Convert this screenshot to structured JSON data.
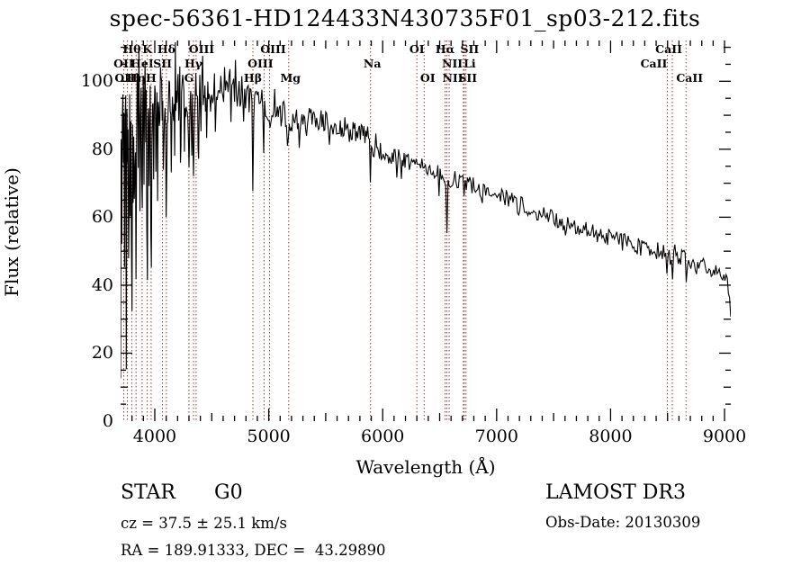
{
  "chart_data": {
    "type": "line",
    "title": "spec-56361-HD124433N430735F01_sp03-212.fits",
    "xlabel": "Wavelength (Å)",
    "ylabel": "Flux (relative)",
    "xlim": [
      3700,
      9055
    ],
    "ylim": [
      0,
      112
    ],
    "x_ticks": [
      4000,
      5000,
      6000,
      7000,
      8000,
      9000
    ],
    "y_ticks": [
      0,
      20,
      40,
      60,
      80,
      100
    ],
    "grid": false,
    "legend": "none",
    "trace_color": "#000000",
    "marker_line_color": "#a03333",
    "spectral_lines": [
      {
        "wl": 3727,
        "label": "OII",
        "row": 2,
        "dx": 0
      },
      {
        "wl": 3760,
        "label": "OIII",
        "row": 3,
        "dx": 0
      },
      {
        "wl": 3798,
        "label": "Hθ",
        "row": 1,
        "dx": 0
      },
      {
        "wl": 3836,
        "label": "Hη",
        "row": 3,
        "dx": 0
      },
      {
        "wl": 3889,
        "label": "HeI",
        "row": 2,
        "dx": 0
      },
      {
        "wl": 3934,
        "label": "K",
        "row": 1,
        "dx": 0
      },
      {
        "wl": 3968,
        "label": "H",
        "row": 3,
        "dx": 0
      },
      {
        "wl": 4068,
        "label": "SII",
        "row": 2,
        "dx": 0
      },
      {
        "wl": 4102,
        "label": "Hδ",
        "row": 1,
        "dx": 0
      },
      {
        "wl": 4300,
        "label": "G",
        "row": 3,
        "dx": 0
      },
      {
        "wl": 4340,
        "label": "Hγ",
        "row": 2,
        "dx": 0
      },
      {
        "wl": 4363,
        "label": "OIII",
        "row": 1,
        "dx": 6
      },
      {
        "wl": 4861,
        "label": "Hβ",
        "row": 3,
        "dx": 0
      },
      {
        "wl": 4959,
        "label": "OIII",
        "row": 2,
        "dx": -4
      },
      {
        "wl": 5007,
        "label": "OIII",
        "row": 1,
        "dx": 4
      },
      {
        "wl": 5175,
        "label": "Mg",
        "row": 3,
        "dx": 2
      },
      {
        "wl": 5893,
        "label": "Na",
        "row": 2,
        "dx": 2
      },
      {
        "wl": 6300,
        "label": "OI",
        "row": 1,
        "dx": 0
      },
      {
        "wl": 6364,
        "label": "OI",
        "row": 3,
        "dx": 4
      },
      {
        "wl": 6548,
        "label": "NII",
        "row": 2,
        "dx": 8
      },
      {
        "wl": 6563,
        "label": "Hα",
        "row": 1,
        "dx": -2
      },
      {
        "wl": 6583,
        "label": "NII",
        "row": 3,
        "dx": 4
      },
      {
        "wl": 6708,
        "label": "Li",
        "row": 2,
        "dx": 7
      },
      {
        "wl": 6716,
        "label": "SII",
        "row": 1,
        "dx": 6
      },
      {
        "wl": 6731,
        "label": "SII",
        "row": 3,
        "dx": 2
      },
      {
        "wl": 8498,
        "label": "CaII",
        "row": 2,
        "dx": -15
      },
      {
        "wl": 8542,
        "label": "CaII",
        "row": 1,
        "dx": -4
      },
      {
        "wl": 8662,
        "label": "CaII",
        "row": 3,
        "dx": 4
      }
    ],
    "continuum": [
      [
        3700,
        12
      ],
      [
        3704,
        85
      ],
      [
        3715,
        93
      ],
      [
        3740,
        95
      ],
      [
        3770,
        96
      ],
      [
        3800,
        95
      ],
      [
        3850,
        96
      ],
      [
        3900,
        97
      ],
      [
        3950,
        97
      ],
      [
        4000,
        93
      ],
      [
        4050,
        95
      ],
      [
        4120,
        94
      ],
      [
        4200,
        95
      ],
      [
        4300,
        95
      ],
      [
        4400,
        97
      ],
      [
        4500,
        96
      ],
      [
        4600,
        99
      ],
      [
        4680,
        99
      ],
      [
        4750,
        97
      ],
      [
        4820,
        95
      ],
      [
        4900,
        94
      ],
      [
        5000,
        92
      ],
      [
        5100,
        91
      ],
      [
        5200,
        89
      ],
      [
        5300,
        89
      ],
      [
        5400,
        88.5
      ],
      [
        5500,
        88
      ],
      [
        5600,
        87
      ],
      [
        5700,
        86
      ],
      [
        5800,
        85
      ],
      [
        5870,
        84
      ],
      [
        5910,
        81
      ],
      [
        6000,
        79
      ],
      [
        6100,
        78
      ],
      [
        6200,
        77
      ],
      [
        6300,
        75.5
      ],
      [
        6400,
        74
      ],
      [
        6500,
        72.5
      ],
      [
        6560,
        71.5
      ],
      [
        6650,
        71
      ],
      [
        6750,
        70
      ],
      [
        6900,
        68
      ],
      [
        7000,
        66.5
      ],
      [
        7100,
        65.5
      ],
      [
        7200,
        64
      ],
      [
        7300,
        62.5
      ],
      [
        7400,
        61
      ],
      [
        7500,
        59.5
      ],
      [
        7600,
        58
      ],
      [
        7700,
        57
      ],
      [
        7800,
        56
      ],
      [
        7900,
        55
      ],
      [
        8000,
        54
      ],
      [
        8100,
        53
      ],
      [
        8200,
        52
      ],
      [
        8300,
        51
      ],
      [
        8400,
        50
      ],
      [
        8500,
        49
      ],
      [
        8600,
        48
      ],
      [
        8700,
        47
      ],
      [
        8800,
        46
      ],
      [
        8900,
        45
      ],
      [
        9000,
        44
      ],
      [
        9025,
        43
      ],
      [
        9045,
        37
      ],
      [
        9055,
        32
      ]
    ],
    "noise_profile": [
      [
        3700,
        13
      ],
      [
        3800,
        12
      ],
      [
        3900,
        11
      ],
      [
        4000,
        10
      ],
      [
        4100,
        8
      ],
      [
        4250,
        7
      ],
      [
        4400,
        6
      ],
      [
        4600,
        5.5
      ],
      [
        4800,
        5
      ],
      [
        5000,
        4.2
      ],
      [
        5300,
        3.6
      ],
      [
        5600,
        3.2
      ],
      [
        6000,
        2.9
      ],
      [
        6500,
        2.6
      ],
      [
        7000,
        2.5
      ],
      [
        7500,
        2.5
      ],
      [
        8000,
        2.6
      ],
      [
        8600,
        2.8
      ],
      [
        9055,
        2.8
      ]
    ],
    "noise_seed": 20130309,
    "absorption_features": [
      [
        3712,
        40,
        3
      ],
      [
        3727,
        28,
        3
      ],
      [
        3736,
        62,
        3
      ],
      [
        3750,
        80,
        3
      ],
      [
        3762,
        45,
        3
      ],
      [
        3772,
        82,
        3
      ],
      [
        3786,
        38,
        3
      ],
      [
        3798,
        66,
        4
      ],
      [
        3812,
        30,
        3
      ],
      [
        3822,
        48,
        3
      ],
      [
        3836,
        60,
        4
      ],
      [
        3856,
        28,
        3
      ],
      [
        3871,
        42,
        3
      ],
      [
        3889,
        46,
        4
      ],
      [
        3906,
        30,
        3
      ],
      [
        3920,
        24,
        3
      ],
      [
        3934,
        62,
        5
      ],
      [
        3950,
        32,
        3
      ],
      [
        3968,
        70,
        5
      ],
      [
        3988,
        28,
        3
      ],
      [
        4009,
        22,
        3
      ],
      [
        4026,
        26,
        4
      ],
      [
        4045,
        22,
        3
      ],
      [
        4077,
        20,
        3
      ],
      [
        4102,
        36,
        5
      ],
      [
        4144,
        24,
        4
      ],
      [
        4175,
        16,
        3
      ],
      [
        4227,
        20,
        4
      ],
      [
        4260,
        16,
        3
      ],
      [
        4300,
        26,
        5
      ],
      [
        4325,
        20,
        3
      ],
      [
        4340,
        30,
        5
      ],
      [
        4383,
        24,
        4
      ],
      [
        4405,
        16,
        3
      ],
      [
        4455,
        14,
        3
      ],
      [
        4531,
        13,
        3
      ],
      [
        4668,
        11,
        3
      ],
      [
        4780,
        9,
        3
      ],
      [
        4861,
        28,
        5
      ],
      [
        4920,
        10,
        3
      ],
      [
        4957,
        12,
        3
      ],
      [
        5015,
        10,
        3
      ],
      [
        5110,
        9,
        3
      ],
      [
        5167,
        15,
        4
      ],
      [
        5185,
        13,
        4
      ],
      [
        5270,
        11,
        4
      ],
      [
        5330,
        7,
        3
      ],
      [
        5400,
        6,
        3
      ],
      [
        5530,
        7,
        3
      ],
      [
        5710,
        6,
        3
      ],
      [
        5782,
        5,
        3
      ],
      [
        5893,
        10,
        5
      ],
      [
        6000,
        5,
        3
      ],
      [
        6122,
        6,
        3
      ],
      [
        6162,
        6,
        3
      ],
      [
        6240,
        5,
        3
      ],
      [
        6300,
        6,
        3
      ],
      [
        6495,
        7,
        4
      ],
      [
        6563,
        15,
        4
      ],
      [
        6610,
        5,
        3
      ],
      [
        6717,
        8,
        4
      ],
      [
        6870,
        9,
        5
      ],
      [
        7000,
        5,
        3
      ],
      [
        7190,
        7,
        4
      ],
      [
        7280,
        5,
        3
      ],
      [
        7450,
        5,
        3
      ],
      [
        7600,
        8,
        6
      ],
      [
        7720,
        5,
        3
      ],
      [
        7900,
        5,
        3
      ],
      [
        8100,
        5,
        3
      ],
      [
        8230,
        6,
        4
      ],
      [
        8370,
        5,
        3
      ],
      [
        8430,
        6,
        3
      ],
      [
        8498,
        9,
        4
      ],
      [
        8542,
        10,
        4
      ],
      [
        8610,
        5,
        3
      ],
      [
        8662,
        9,
        4
      ],
      [
        8750,
        5,
        3
      ],
      [
        8880,
        6,
        3
      ],
      [
        8950,
        5,
        3
      ]
    ],
    "emission_spikes": [
      [
        3745,
        14,
        2.5
      ],
      [
        3780,
        10,
        2.5
      ],
      [
        3860,
        10,
        2.5
      ],
      [
        3910,
        12,
        2.5
      ],
      [
        4047,
        20,
        3
      ],
      [
        4180,
        16,
        3
      ],
      [
        4220,
        10,
        2.5
      ],
      [
        4420,
        8,
        3
      ],
      [
        4650,
        7,
        3
      ],
      [
        4710,
        7,
        3
      ],
      [
        5055,
        6,
        3
      ],
      [
        5940,
        4,
        3
      ],
      [
        6420,
        5,
        3
      ],
      [
        7050,
        5,
        3
      ],
      [
        7420,
        6,
        3
      ],
      [
        8330,
        8,
        3
      ],
      [
        8560,
        6,
        3
      ]
    ]
  },
  "footer": {
    "class_label": "STAR",
    "subclass": "G0",
    "survey": "LAMOST DR3",
    "cz": "cz = 37.5 ± 25.1 km/s",
    "obs_date": "Obs-Date: 20130309",
    "coords": "RA = 189.91333, DEC =  43.29890"
  }
}
